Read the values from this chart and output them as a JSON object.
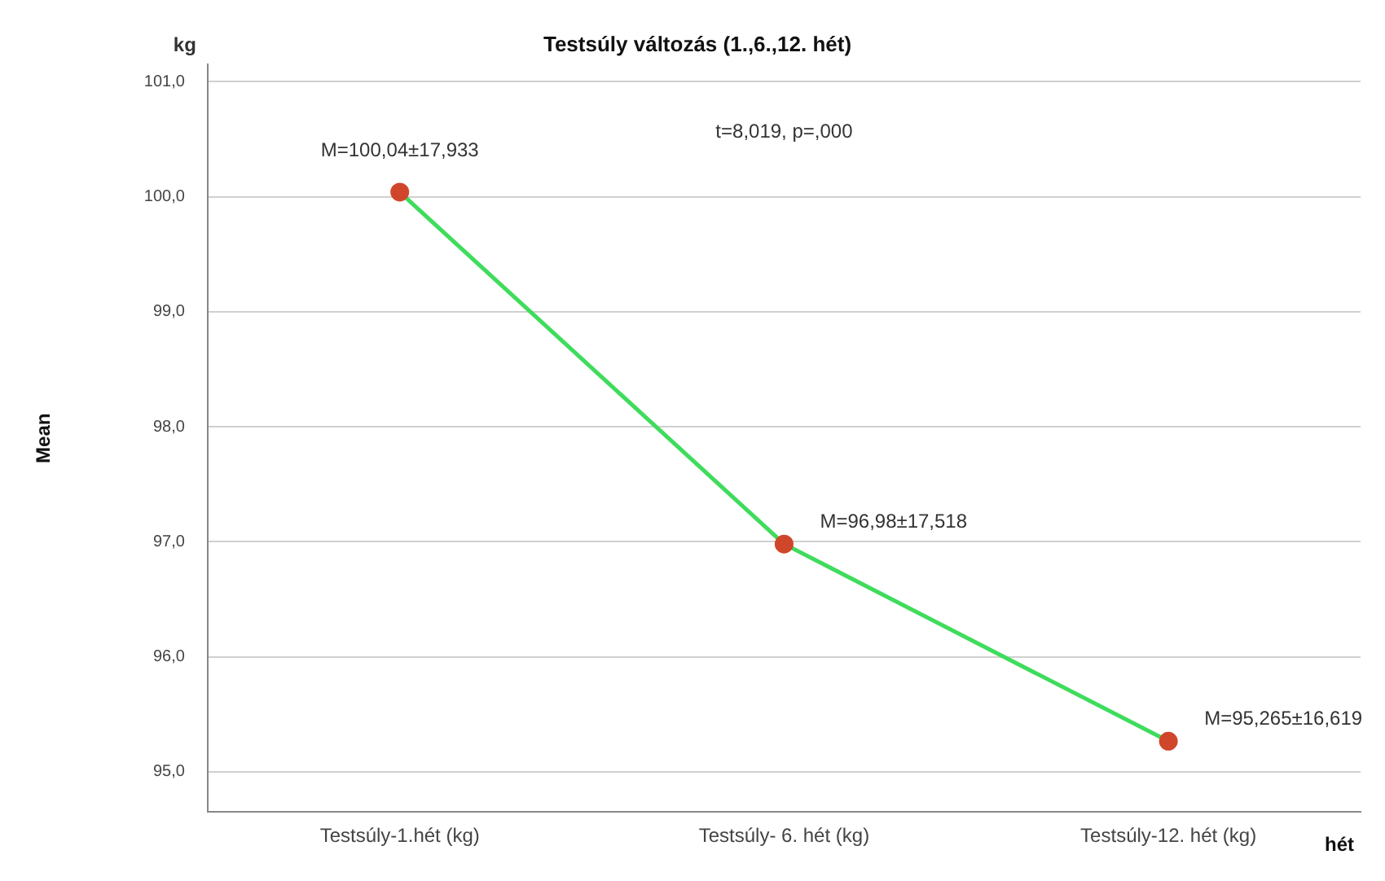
{
  "chart_data": {
    "type": "line",
    "title": "Testsúly változás (1.,6.,12. hét)",
    "xlabel": "hét",
    "ylabel": "Mean",
    "categories": [
      "Testsúly-1.hét (kg)",
      "Testsúly- 6. hét (kg)",
      "Testsúly-12. hét (kg)"
    ],
    "series": [
      {
        "color": "#3fdc5c",
        "colors": [
          "#d0462a",
          "#d0462a",
          "#d0462a"
        ],
        "values": [
          100.04,
          96.98,
          95.265
        ]
      }
    ],
    "ylim": [
      94.65,
      101.15
    ],
    "yticks": [
      {
        "value": 95,
        "label": "95,0"
      },
      {
        "value": 96,
        "label": "96,0"
      },
      {
        "value": 97,
        "label": "97,0"
      },
      {
        "value": 98,
        "label": "98,0"
      },
      {
        "value": 99,
        "label": "99,0"
      },
      {
        "value": 100,
        "label": "100,0"
      },
      {
        "value": 101,
        "label": "101,0"
      }
    ],
    "grid": "y",
    "marker": "circle",
    "line_style": "solid",
    "legend": false,
    "annotations": [
      "kg",
      "t=8,019, p=,000",
      {
        "text": "M=100,04±17,933",
        "x": "Testsúly-1.hét (kg)",
        "y": 100.04
      },
      {
        "text": "M=96,98±17,518",
        "x": "Testsúly- 6. hét (kg)",
        "y": 96.98
      },
      {
        "text": "M=95,265±16,619",
        "x": "Testsúly-12. hét (kg)",
        "y": 95.265
      }
    ]
  }
}
